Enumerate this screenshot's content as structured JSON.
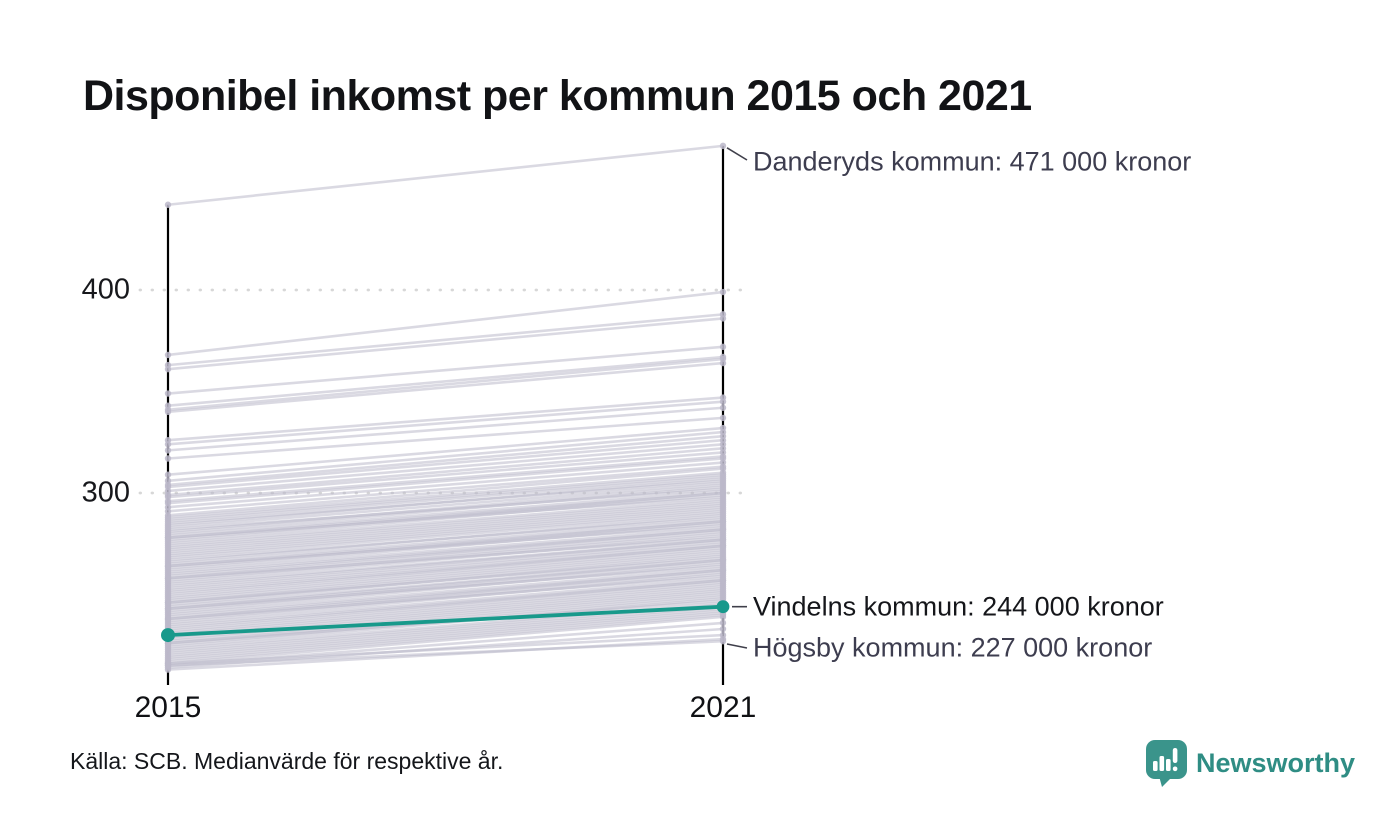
{
  "title": "Disponibel inkomst per kommun 2015 och 2021",
  "source": "Källa: SCB. Medianvärde för respektive år.",
  "brand": {
    "name": "Newsworthy",
    "color": "#2f8d84",
    "icon": "speech-bubble-bar-chart-icon",
    "icon_color": "#3a948b"
  },
  "axis": {
    "y_ticks": [
      "400",
      "300"
    ],
    "x_labels": [
      "2015",
      "2021"
    ]
  },
  "annotations": {
    "top": "Danderyds kommun: 471 000 kronor",
    "highlight": "Vindelns kommun: 244 000 kronor",
    "bottom": "Högsby kommun: 227 000 kronor"
  },
  "chart_data": {
    "type": "line",
    "variant": "slopegraph",
    "title": "Disponibel inkomst per kommun 2015 och 2021",
    "x": [
      2015,
      2021
    ],
    "unit": "tusen kronor",
    "ylim": [
      210,
      480
    ],
    "y_gridlines": [
      300,
      400
    ],
    "grid": "dotted",
    "line_color": "#bcb9ca",
    "highlight_color": "#18998b",
    "axis_color": "#000000",
    "labeled": [
      {
        "name": "Danderyds kommun",
        "value_2021": 471
      },
      {
        "name": "Vindelns kommun",
        "value_2021": 244
      },
      {
        "name": "Högsby kommun",
        "value_2021": 227
      }
    ],
    "highlighted": {
      "name": "Vindelns kommun",
      "values": [
        230,
        244
      ]
    },
    "lines": [
      [
        442,
        471
      ],
      [
        368,
        399
      ],
      [
        363,
        388
      ],
      [
        361,
        386
      ],
      [
        349,
        372
      ],
      [
        343,
        367
      ],
      [
        341,
        366
      ],
      [
        340,
        364
      ],
      [
        326,
        347
      ],
      [
        324,
        345
      ],
      [
        321,
        342
      ],
      [
        317,
        337
      ],
      [
        309,
        332
      ],
      [
        306,
        330
      ],
      [
        304,
        328
      ],
      [
        303,
        326
      ],
      [
        301,
        324
      ],
      [
        299,
        322
      ],
      [
        298,
        320
      ],
      [
        296,
        318
      ],
      [
        295,
        317
      ],
      [
        293,
        315
      ],
      [
        291,
        313
      ],
      [
        289,
        312
      ],
      [
        288,
        310
      ],
      [
        287,
        309
      ],
      [
        286,
        308
      ],
      [
        284,
        307
      ],
      [
        285,
        306
      ],
      [
        283,
        305
      ],
      [
        281,
        304
      ],
      [
        280,
        303
      ],
      [
        282,
        302
      ],
      [
        279,
        301
      ],
      [
        278,
        300
      ],
      [
        277,
        300
      ],
      [
        276,
        299
      ],
      [
        278,
        298
      ],
      [
        275,
        297
      ],
      [
        274,
        296
      ],
      [
        273,
        295
      ],
      [
        272,
        294
      ],
      [
        271,
        293
      ],
      [
        270,
        292
      ],
      [
        269,
        291
      ],
      [
        268,
        290
      ],
      [
        266,
        289
      ],
      [
        267,
        288
      ],
      [
        265,
        287
      ],
      [
        264,
        286
      ],
      [
        263,
        286
      ],
      [
        262,
        285
      ],
      [
        264,
        284
      ],
      [
        261,
        283
      ],
      [
        260,
        282
      ],
      [
        259,
        282
      ],
      [
        258,
        281
      ],
      [
        257,
        280
      ],
      [
        256,
        279
      ],
      [
        258,
        278
      ],
      [
        255,
        277
      ],
      [
        254,
        277
      ],
      [
        253,
        276
      ],
      [
        252,
        275
      ],
      [
        251,
        274
      ],
      [
        250,
        274
      ],
      [
        249,
        273
      ],
      [
        248,
        272
      ],
      [
        247,
        271
      ],
      [
        246,
        270
      ],
      [
        245,
        269
      ],
      [
        246,
        268
      ],
      [
        244,
        267
      ],
      [
        243,
        267
      ],
      [
        242,
        266
      ],
      [
        241,
        265
      ],
      [
        243,
        264
      ],
      [
        240,
        263
      ],
      [
        239,
        262
      ],
      [
        238,
        262
      ],
      [
        237,
        261
      ],
      [
        236,
        260
      ],
      [
        238,
        259
      ],
      [
        235,
        258
      ],
      [
        234,
        257
      ],
      [
        233,
        257
      ],
      [
        232,
        256
      ],
      [
        231,
        255
      ],
      [
        230,
        254
      ],
      [
        229,
        253
      ],
      [
        228,
        252
      ],
      [
        227,
        251
      ],
      [
        226,
        250
      ],
      [
        225,
        249
      ],
      [
        224,
        248
      ],
      [
        226,
        247
      ],
      [
        223,
        246
      ],
      [
        222,
        245
      ],
      [
        221,
        244
      ],
      [
        220,
        243
      ],
      [
        219,
        242
      ],
      [
        218,
        241
      ],
      [
        217,
        240
      ],
      [
        216,
        239
      ],
      [
        215,
        236
      ],
      [
        214,
        233
      ],
      [
        216,
        230
      ],
      [
        213,
        228
      ],
      [
        215,
        227
      ]
    ]
  }
}
